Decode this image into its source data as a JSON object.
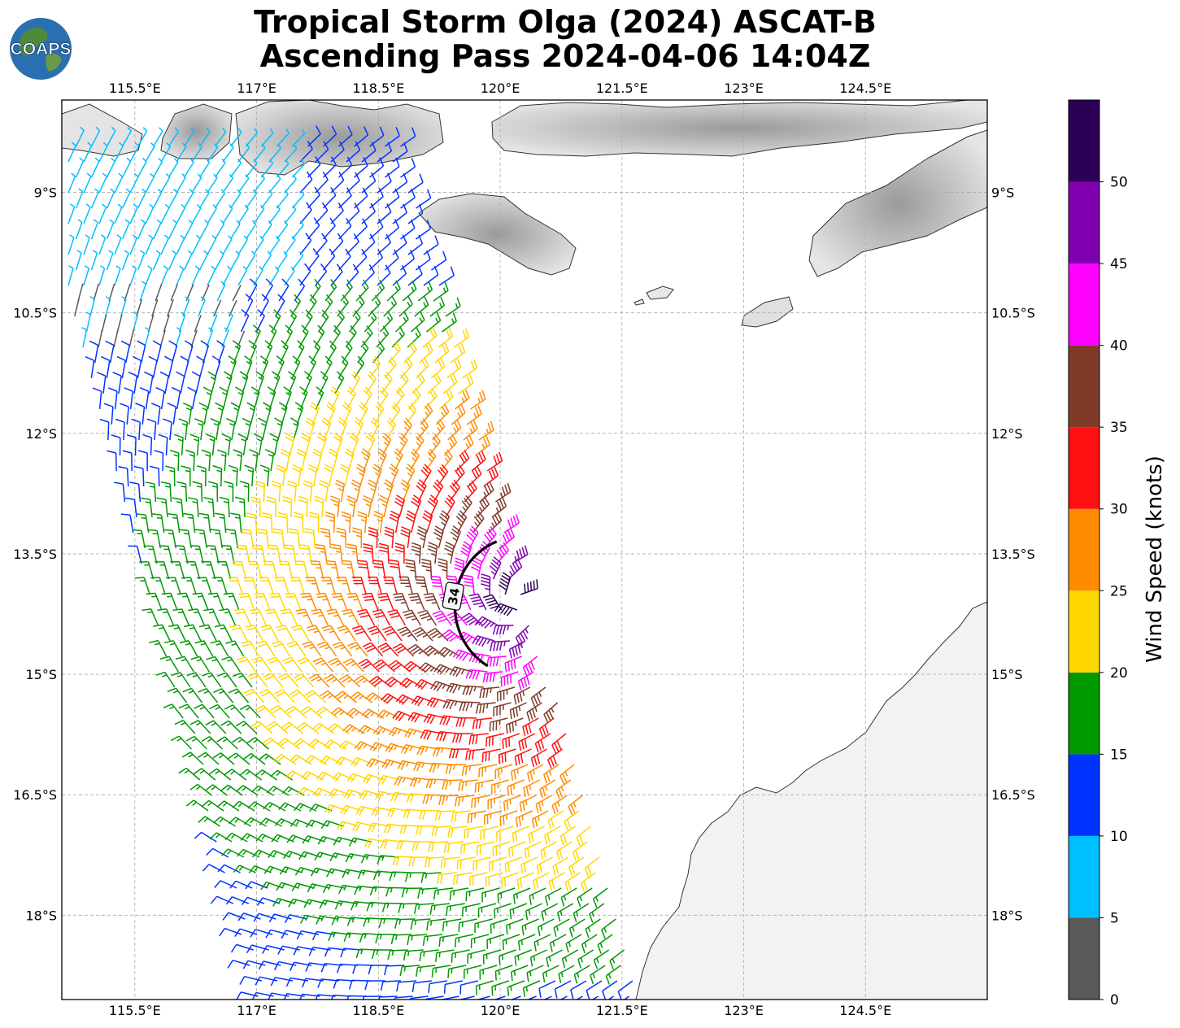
{
  "title": {
    "line1": "Tropical Storm Olga (2024) ASCAT-B",
    "line2": "Ascending Pass 2024-04-06 14:04Z"
  },
  "logo": {
    "text": "COAPS"
  },
  "map": {
    "projection": "plate-carree",
    "lon_range": [
      114.6,
      126.0
    ],
    "lat_range": [
      -19.05,
      -7.85
    ],
    "lon_ticks": [
      "115.5°E",
      "117°E",
      "118.5°E",
      "120°E",
      "121.5°E",
      "123°E",
      "124.5°E"
    ],
    "lat_ticks": [
      "9°S",
      "10.5°S",
      "12°S",
      "13.5°S",
      "15°S",
      "16.5°S",
      "18°S"
    ],
    "grid": true,
    "land_color": "grayscale terrain",
    "storm_center": {
      "lon": 120.25,
      "lat": -14.15
    },
    "wind_radius_label": "34",
    "wind_radius_knots": 34
  },
  "colorbar": {
    "title": "Wind Speed (knots)",
    "ticks": [
      "0",
      "5",
      "10",
      "15",
      "20",
      "25",
      "30",
      "35",
      "40",
      "45",
      "50"
    ],
    "bins": [
      {
        "min": 0,
        "max": 5,
        "color": "#595959"
      },
      {
        "min": 5,
        "max": 10,
        "color": "#00bfff"
      },
      {
        "min": 10,
        "max": 15,
        "color": "#0033ff"
      },
      {
        "min": 15,
        "max": 20,
        "color": "#009900"
      },
      {
        "min": 20,
        "max": 25,
        "color": "#ffd700"
      },
      {
        "min": 25,
        "max": 30,
        "color": "#ff8c00"
      },
      {
        "min": 30,
        "max": 35,
        "color": "#ff1010"
      },
      {
        "min": 35,
        "max": 40,
        "color": "#7f3a28"
      },
      {
        "min": 40,
        "max": 45,
        "color": "#ff00ff"
      },
      {
        "min": 45,
        "max": 50,
        "color": "#8000b0"
      },
      {
        "min": 50,
        "max": 55,
        "color": "#2d0057"
      }
    ]
  }
}
